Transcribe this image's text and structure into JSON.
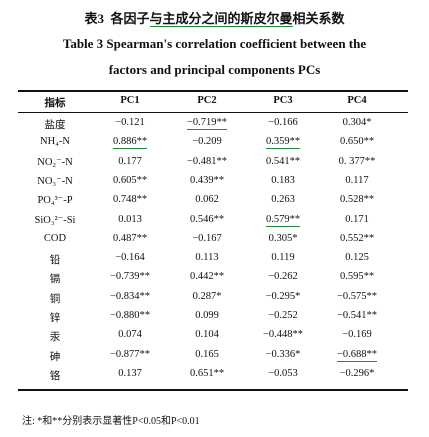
{
  "header": {
    "number": "表3",
    "title_before": "各因子",
    "title_underlined": "与主成分之间的斯皮尔曼",
    "title_after": "相关系数",
    "title_en_line1": "Table 3   Spearman's correlation coefficient between the",
    "title_en_line2": "factors and principal components PCs"
  },
  "table": {
    "columns": [
      "指标",
      "PC1",
      "PC2",
      "PC3",
      "PC4"
    ],
    "rows": [
      [
        "盐度",
        "−0.121",
        "−0.719**",
        "−0.166",
        "0.304*"
      ],
      [
        "NH₄-N",
        "0.886**",
        "−0.209",
        "0.359**",
        "0.650**"
      ],
      [
        "NO₂⁻-N",
        "0.177",
        "−0.481**",
        "0.541**",
        "0. 377**"
      ],
      [
        "NO₃⁻-N",
        "0.605**",
        "0.439**",
        "0.183",
        "0.117"
      ],
      [
        "PO₄³⁻-P",
        "0.748**",
        "0.062",
        "0.263",
        "0.528**"
      ],
      [
        "SiO₃²⁻-Si",
        "0.013",
        "0.546**",
        "0.579**",
        "0.171"
      ],
      [
        "COD",
        "0.487**",
        "−0.167",
        "0.305*",
        "0.552**"
      ],
      [
        "铅",
        "−0.164",
        "0.113",
        "0.119",
        "0.125"
      ],
      [
        "镉",
        "−0.739**",
        "0.442**",
        "−0.262",
        "0.595**"
      ],
      [
        "铜",
        "−0.834**",
        "0.287*",
        "−0.295*",
        "−0.575**"
      ],
      [
        "锌",
        "−0.880**",
        "0.099",
        "−0.252",
        "−0.541**"
      ],
      [
        "汞",
        "0.074",
        "0.104",
        "−0.448**",
        "−0.169"
      ],
      [
        "砷",
        "−0.877**",
        "0.165",
        "−0.336*",
        "−0.688**"
      ],
      [
        "铬",
        "0.137",
        "0.651**",
        "−0.053",
        "−0.296*"
      ]
    ],
    "underlined": [
      {
        "row": 0,
        "col": 2
      },
      {
        "row": 1,
        "col": 1
      },
      {
        "row": 1,
        "col": 3
      },
      {
        "row": 5,
        "col": 3
      },
      {
        "row": 12,
        "col": 4
      }
    ]
  },
  "note": "注: *和**分别表示显著性P<0.05和P<0.01"
}
